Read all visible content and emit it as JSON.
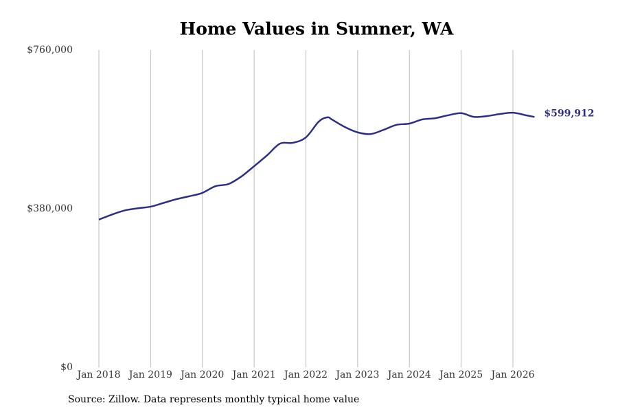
{
  "chart_data": {
    "type": "line",
    "title": "Home Values in Sumner, WA",
    "source": "Source: Zillow. Data represents monthly typical home value",
    "x": [
      "2018-01",
      "2018-04",
      "2018-07",
      "2018-10",
      "2019-01",
      "2019-04",
      "2019-07",
      "2019-10",
      "2020-01",
      "2020-04",
      "2020-07",
      "2020-10",
      "2021-01",
      "2021-04",
      "2021-07",
      "2021-10",
      "2022-01",
      "2022-04",
      "2022-06",
      "2022-07",
      "2022-10",
      "2023-01",
      "2023-04",
      "2023-07",
      "2023-10",
      "2024-01",
      "2024-04",
      "2024-07",
      "2024-10",
      "2025-01",
      "2025-04",
      "2025-07",
      "2025-10",
      "2026-01",
      "2026-04",
      "2026-06"
    ],
    "series": [
      {
        "name": "Sumner, WA",
        "color": "#2e2e86",
        "values": [
          354000,
          366000,
          376000,
          381000,
          385000,
          394000,
          403000,
          410000,
          418000,
          434000,
          439000,
          457000,
          482000,
          508000,
          536000,
          538000,
          551000,
          589000,
          599000,
          594000,
          576000,
          563000,
          559000,
          569000,
          581000,
          584000,
          594000,
          597000,
          604000,
          609000,
          600000,
          602000,
          607000,
          610000,
          604000,
          599912
        ],
        "value_labels": [
          null,
          null,
          null,
          null,
          null,
          null,
          null,
          null,
          null,
          null,
          null,
          null,
          null,
          null,
          null,
          null,
          null,
          null,
          null,
          null,
          null,
          null,
          null,
          null,
          null,
          null,
          null,
          null,
          null,
          null,
          null,
          null,
          null,
          null,
          null,
          "$599,912"
        ]
      }
    ],
    "xticks": [
      {
        "value": "2018-01",
        "label": "Jan 2018"
      },
      {
        "value": "2019-01",
        "label": "Jan 2019"
      },
      {
        "value": "2020-01",
        "label": "Jan 2020"
      },
      {
        "value": "2021-01",
        "label": "Jan 2021"
      },
      {
        "value": "2022-01",
        "label": "Jan 2022"
      },
      {
        "value": "2023-01",
        "label": "Jan 2023"
      },
      {
        "value": "2024-01",
        "label": "Jan 2024"
      },
      {
        "value": "2025-01",
        "label": "Jan 2025"
      },
      {
        "value": "2026-01",
        "label": "Jan 2026"
      }
    ],
    "ylim": [
      0,
      760000
    ],
    "yticks": [
      {
        "value": 0,
        "label": "$0"
      },
      {
        "value": 380000,
        "label": "$380,000"
      },
      {
        "value": 760000,
        "label": "$760,000"
      }
    ],
    "grid": "x"
  }
}
